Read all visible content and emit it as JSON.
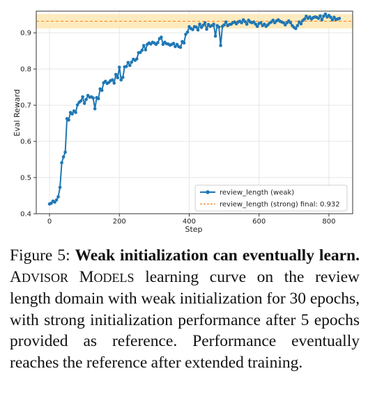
{
  "chart_data": {
    "type": "line",
    "xlabel": "Step",
    "ylabel": "Eval Reward",
    "xlim": [
      -38,
      868
    ],
    "ylim": [
      0.4,
      0.96
    ],
    "xticks": [
      0,
      200,
      400,
      600,
      800
    ],
    "yticks": [
      0.4,
      0.5,
      0.6,
      0.7,
      0.8,
      0.9
    ],
    "xtick_labels": [
      "0",
      "200",
      "400",
      "600",
      "800"
    ],
    "ytick_labels": [
      "0.4",
      "0.5",
      "0.6",
      "0.7",
      "0.8",
      "0.9"
    ],
    "grid": true,
    "legend_position": "lower-right",
    "series": [
      {
        "name": "review_length (weak)",
        "style": "line-with-markers",
        "color": "#1f77b4",
        "x": [
          0,
          5,
          10,
          15,
          20,
          25,
          30,
          35,
          40,
          45,
          50,
          55,
          60,
          65,
          70,
          75,
          80,
          85,
          90,
          95,
          100,
          105,
          110,
          115,
          120,
          125,
          130,
          135,
          140,
          145,
          150,
          155,
          160,
          165,
          170,
          175,
          180,
          185,
          190,
          195,
          200,
          205,
          210,
          215,
          220,
          225,
          230,
          235,
          240,
          245,
          250,
          255,
          260,
          265,
          270,
          275,
          280,
          285,
          290,
          295,
          300,
          305,
          310,
          315,
          320,
          325,
          330,
          335,
          340,
          345,
          350,
          355,
          360,
          365,
          370,
          375,
          380,
          385,
          390,
          395,
          400,
          405,
          410,
          415,
          420,
          425,
          430,
          435,
          440,
          445,
          450,
          455,
          460,
          465,
          470,
          475,
          480,
          485,
          490,
          495,
          500,
          505,
          510,
          515,
          520,
          525,
          530,
          535,
          540,
          545,
          550,
          555,
          560,
          565,
          570,
          575,
          580,
          585,
          590,
          595,
          600,
          605,
          610,
          615,
          620,
          625,
          630,
          635,
          640,
          645,
          650,
          655,
          660,
          665,
          670,
          675,
          680,
          685,
          690,
          695,
          700,
          705,
          710,
          715,
          720,
          725,
          730,
          735,
          740,
          745,
          750,
          755,
          760,
          765,
          770,
          775,
          780,
          785,
          790,
          795,
          800,
          805,
          810,
          815,
          820,
          825,
          830
        ],
        "y": [
          0.427,
          0.429,
          0.435,
          0.432,
          0.438,
          0.447,
          0.473,
          0.541,
          0.557,
          0.57,
          0.663,
          0.659,
          0.68,
          0.676,
          0.684,
          0.68,
          0.701,
          0.708,
          0.712,
          0.723,
          0.705,
          0.716,
          0.727,
          0.722,
          0.723,
          0.72,
          0.69,
          0.721,
          0.718,
          0.745,
          0.741,
          0.762,
          0.766,
          0.76,
          0.763,
          0.768,
          0.77,
          0.761,
          0.785,
          0.776,
          0.805,
          0.77,
          0.777,
          0.806,
          0.807,
          0.818,
          0.81,
          0.819,
          0.827,
          0.824,
          0.828,
          0.845,
          0.846,
          0.852,
          0.865,
          0.853,
          0.868,
          0.872,
          0.869,
          0.874,
          0.872,
          0.868,
          0.873,
          0.884,
          0.888,
          0.868,
          0.874,
          0.87,
          0.869,
          0.866,
          0.868,
          0.871,
          0.862,
          0.868,
          0.862,
          0.86,
          0.876,
          0.872,
          0.896,
          0.902,
          0.917,
          0.912,
          0.909,
          0.917,
          0.916,
          0.908,
          0.924,
          0.915,
          0.921,
          0.928,
          0.91,
          0.923,
          0.918,
          0.92,
          0.924,
          0.891,
          0.92,
          0.916,
          0.865,
          0.918,
          0.922,
          0.93,
          0.92,
          0.923,
          0.924,
          0.928,
          0.93,
          0.925,
          0.93,
          0.932,
          0.928,
          0.936,
          0.931,
          0.924,
          0.935,
          0.93,
          0.928,
          0.93,
          0.924,
          0.918,
          0.926,
          0.928,
          0.92,
          0.924,
          0.918,
          0.922,
          0.927,
          0.93,
          0.935,
          0.928,
          0.933,
          0.936,
          0.932,
          0.93,
          0.928,
          0.922,
          0.928,
          0.933,
          0.928,
          0.92,
          0.915,
          0.912,
          0.92,
          0.93,
          0.925,
          0.934,
          0.938,
          0.946,
          0.94,
          0.944,
          0.938,
          0.942,
          0.944,
          0.943,
          0.94,
          0.947,
          0.936,
          0.946,
          0.952,
          0.944,
          0.948,
          0.943,
          0.936,
          0.943,
          0.937,
          0.938,
          0.94
        ]
      },
      {
        "name": "review_length (strong) final: 0.932",
        "style": "dashed-horizontal-line",
        "color": "#ff7f0e",
        "value": 0.932,
        "band": [
          0.912,
          0.952
        ],
        "band_color": "#fde8b4"
      }
    ]
  },
  "caption": {
    "figure_label": "Figure 5:",
    "bold_title": "Weak initialization can eventually learn.",
    "method_name_parts": [
      {
        "big": "A",
        "small": "DVISOR"
      },
      {
        "big": "M",
        "small": "ODELS"
      }
    ],
    "body": "learning curve on the review length domain with weak initialization for 30 epochs, with strong initialization performance after 5 epochs provided as reference. Performance eventually reaches the reference after extended training."
  }
}
